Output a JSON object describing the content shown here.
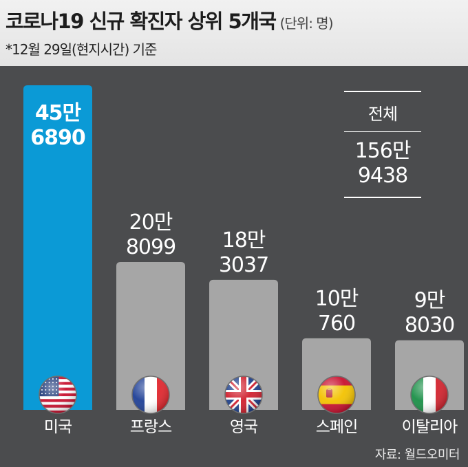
{
  "header": {
    "title": "코로나19 신규 확진자 상위 5개국",
    "unit": "(단위: 명)",
    "subtitle": "*12월 29일(현지시간) 기준"
  },
  "total": {
    "label": "전체",
    "value_line1": "156만",
    "value_line2": "9438"
  },
  "source": "자료: 월드오미터",
  "colors": {
    "highlight": "#0b9ad6",
    "bar": "#a6a6a6",
    "background": "#4b4c4e"
  },
  "chart_data": {
    "type": "bar",
    "categories": [
      "미국",
      "프랑스",
      "영국",
      "스페인",
      "이탈리아"
    ],
    "values": [
      456890,
      208099,
      183037,
      100760,
      98030
    ],
    "data_labels": [
      [
        "45만",
        "6890"
      ],
      [
        "20만",
        "8099"
      ],
      [
        "18만",
        "3037"
      ],
      [
        "10만",
        "760"
      ],
      [
        "9만",
        "8030"
      ]
    ],
    "flag_icons": [
      "usa-flag-icon",
      "france-flag-icon",
      "uk-flag-icon",
      "spain-flag-icon",
      "italy-flag-icon"
    ],
    "highlight_index": 0,
    "title": "코로나19 신규 확진자 상위 5개국",
    "xlabel": "",
    "ylabel": "",
    "grid": false,
    "legend": "none"
  }
}
